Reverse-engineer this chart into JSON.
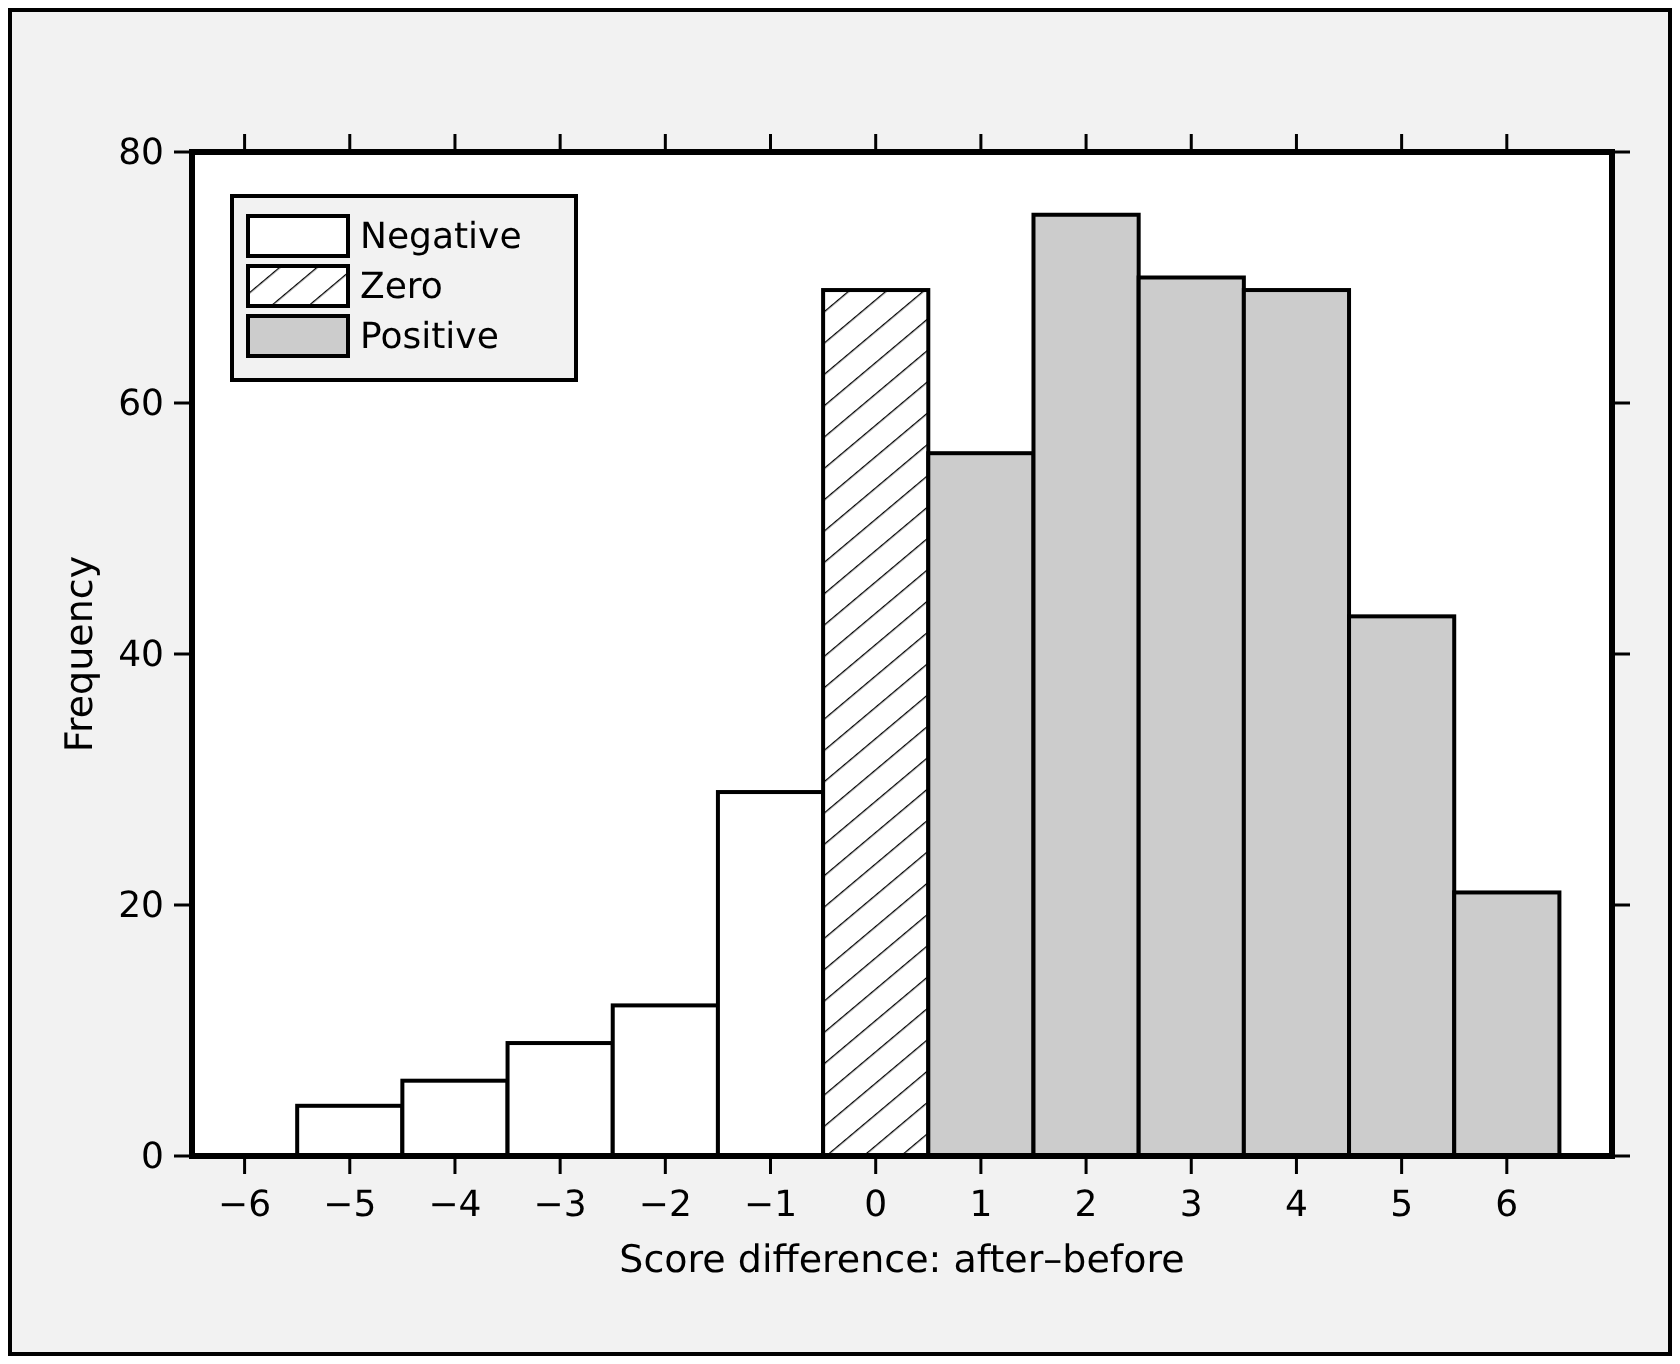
{
  "chart_data": {
    "type": "bar",
    "xlabel": "Score difference: after–before",
    "ylabel": "Frequency",
    "xlim": [
      -6.5,
      7
    ],
    "xticks": [
      {
        "value": -6,
        "label": "−6"
      },
      {
        "value": -5,
        "label": "−5"
      },
      {
        "value": -4,
        "label": "−4"
      },
      {
        "value": -3,
        "label": "−3"
      },
      {
        "value": -2,
        "label": "−2"
      },
      {
        "value": -1,
        "label": "−1"
      },
      0,
      1,
      2,
      3,
      4,
      5,
      6
    ],
    "ylim": [
      0,
      80
    ],
    "yticks": [
      0,
      20,
      40,
      60,
      80
    ],
    "grid": false,
    "legend": "top left",
    "series": [
      {
        "name": "Negative",
        "color": "#ffffff",
        "x": [
          -6,
          -5,
          -4,
          -3,
          -2,
          -1
        ],
        "values": [
          0,
          4,
          6,
          9,
          12,
          29
        ]
      },
      {
        "name": "Zero",
        "color": "#000000",
        "x": [
          0
        ],
        "values": [
          69
        ]
      },
      {
        "name": "Positive",
        "color": "#cccccc",
        "x": [
          1,
          2,
          3,
          4,
          5,
          6
        ],
        "values": [
          56,
          75,
          70,
          69,
          43,
          21
        ]
      }
    ]
  }
}
